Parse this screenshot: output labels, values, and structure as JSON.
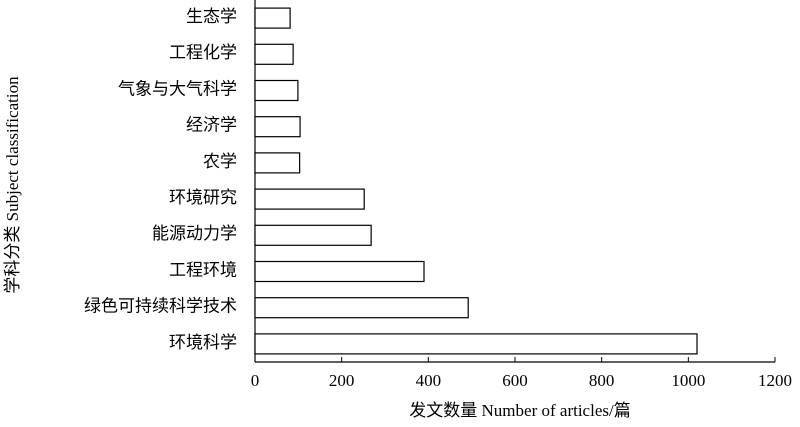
{
  "chart_data": {
    "type": "barh",
    "x_label": "发文数量 Number of articles/篇",
    "y_label": "学科分类 Subject classification",
    "categories": [
      "生态学",
      "工程化学",
      "气象与大气科学",
      "经济学",
      "农学",
      "环境研究",
      "能源动力学",
      "工程环境",
      "绿色可持续科学技术",
      "环境科学"
    ],
    "values": [
      81,
      88,
      99,
      104,
      103,
      252,
      268,
      390,
      492,
      1020
    ],
    "color": "#ffffff",
    "xlim": [
      0,
      1200
    ],
    "xticks": [
      0,
      200,
      400,
      600,
      800,
      1000,
      1200
    ],
    "grid": false
  }
}
